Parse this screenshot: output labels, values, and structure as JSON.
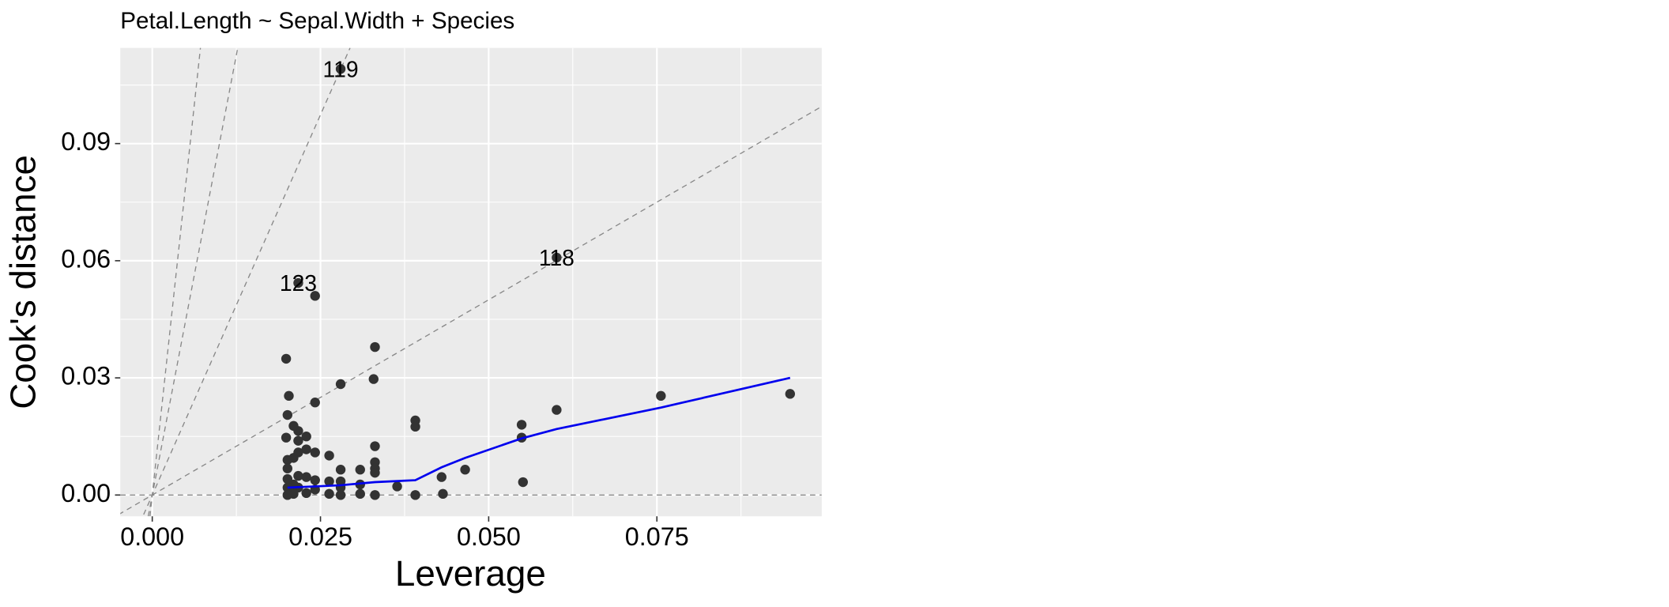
{
  "chart_data": {
    "type": "scatter",
    "title": "Petal.Length ~ Sepal.Width + Species",
    "x_label": "Leverage",
    "y_label": "Cook's distance",
    "xlim": [
      -0.00475,
      0.0995
    ],
    "ylim": [
      -0.00545,
      0.1145
    ],
    "xticks": [
      {
        "value": 0,
        "label": "0.000"
      },
      {
        "value": 0.025,
        "label": "0.025"
      },
      {
        "value": 0.05,
        "label": "0.050"
      },
      {
        "value": 0.075,
        "label": "0.075"
      }
    ],
    "yticks": [
      {
        "value": 0,
        "label": "0.00"
      },
      {
        "value": 0.03,
        "label": "0.03"
      },
      {
        "value": 0.06,
        "label": "0.06"
      },
      {
        "value": 0.09,
        "label": "0.09"
      }
    ],
    "x_minor_ticks": [
      0.0125,
      0.0375,
      0.0625,
      0.0875
    ],
    "y_minor_ticks": [
      0.015,
      0.045,
      0.075,
      0.105
    ],
    "grid": true,
    "point_color": "#333333",
    "x": [
      0.028,
      0.0601,
      0.0217,
      0.0199,
      0.0203,
      0.0201,
      0.0199,
      0.0242,
      0.0242,
      0.0331,
      0.0329,
      0.028,
      0.0391,
      0.0391,
      0.0331,
      0.0549,
      0.0549,
      0.0601,
      0.0756,
      0.0948,
      0.0465,
      0.043,
      0.0432,
      0.0551,
      0.0364,
      0.0391,
      0.0331,
      0.0331,
      0.0331,
      0.0309,
      0.0309,
      0.0309,
      0.028,
      0.028,
      0.028,
      0.028,
      0.0263,
      0.0263,
      0.0263,
      0.0242,
      0.0242,
      0.0242,
      0.0229,
      0.0229,
      0.0229,
      0.0229,
      0.0217,
      0.0217,
      0.0217,
      0.0217,
      0.0217,
      0.021,
      0.021,
      0.021,
      0.021,
      0.0201,
      0.0201,
      0.0201,
      0.0201,
      0.0201,
      0.0331
    ],
    "y": [
      0.1091,
      0.0608,
      0.0543,
      0.0349,
      0.0254,
      0.0205,
      0.0147,
      0.051,
      0.0237,
      0.0379,
      0.0297,
      0.0284,
      0.0191,
      0.0175,
      0.0125,
      0.018,
      0.0147,
      0.0218,
      0.0254,
      0.0259,
      0.0065,
      0.0046,
      0.0003,
      0.0033,
      0.0022,
      0,
      0.0084,
      0.0068,
      0.0057,
      0.0065,
      0.0027,
      0.0003,
      0.0065,
      0.0035,
      0.0019,
      0,
      0.0101,
      0.0035,
      0.0003,
      0.0109,
      0.0038,
      0.0014,
      0.015,
      0.0117,
      0.0046,
      0.0005,
      0.0164,
      0.0139,
      0.0109,
      0.0049,
      0.0019,
      0.0177,
      0.0095,
      0.0027,
      0.0003,
      0.009,
      0.0068,
      0.0041,
      0.0019,
      0,
      0
    ],
    "labels": [
      "119",
      "118",
      "123",
      null,
      null,
      null,
      null,
      null,
      null,
      null,
      null,
      null,
      null,
      null,
      null,
      null,
      null,
      null,
      null,
      null,
      null,
      null,
      null,
      null,
      null,
      null,
      null,
      null,
      null,
      null,
      null,
      null,
      null,
      null,
      null,
      null,
      null,
      null,
      null,
      null,
      null,
      null,
      null,
      null,
      null,
      null,
      null,
      null,
      null,
      null,
      null,
      null,
      null,
      null,
      null,
      null,
      null,
      null,
      null,
      null,
      null
    ],
    "smooth": {
      "color": "#0000ee",
      "x": [
        0.0201,
        0.0242,
        0.028,
        0.0331,
        0.0391,
        0.043,
        0.0465,
        0.0549,
        0.0601,
        0.0756,
        0.0948
      ],
      "y": [
        0.0019,
        0.0022,
        0.0025,
        0.0033,
        0.0038,
        0.0071,
        0.0095,
        0.0145,
        0.0169,
        0.0224,
        0.03
      ]
    },
    "reference_lines": [
      {
        "x": [
          -0.00475,
          0.0995
        ],
        "y": [
          0,
          0
        ]
      },
      {
        "x": [
          -0.005,
          0.0995
        ],
        "y": [
          -0.005,
          0.0995
        ]
      },
      {
        "x": [
          -0.00128,
          0.0294
        ],
        "y": [
          -0.005,
          0.1145
        ]
      },
      {
        "x": [
          -0.0006,
          0.0127
        ],
        "y": [
          -0.00545,
          0.1145
        ]
      },
      {
        "x": [
          -0.00034,
          0.00716
        ],
        "y": [
          -0.00545,
          0.1145
        ]
      }
    ]
  }
}
